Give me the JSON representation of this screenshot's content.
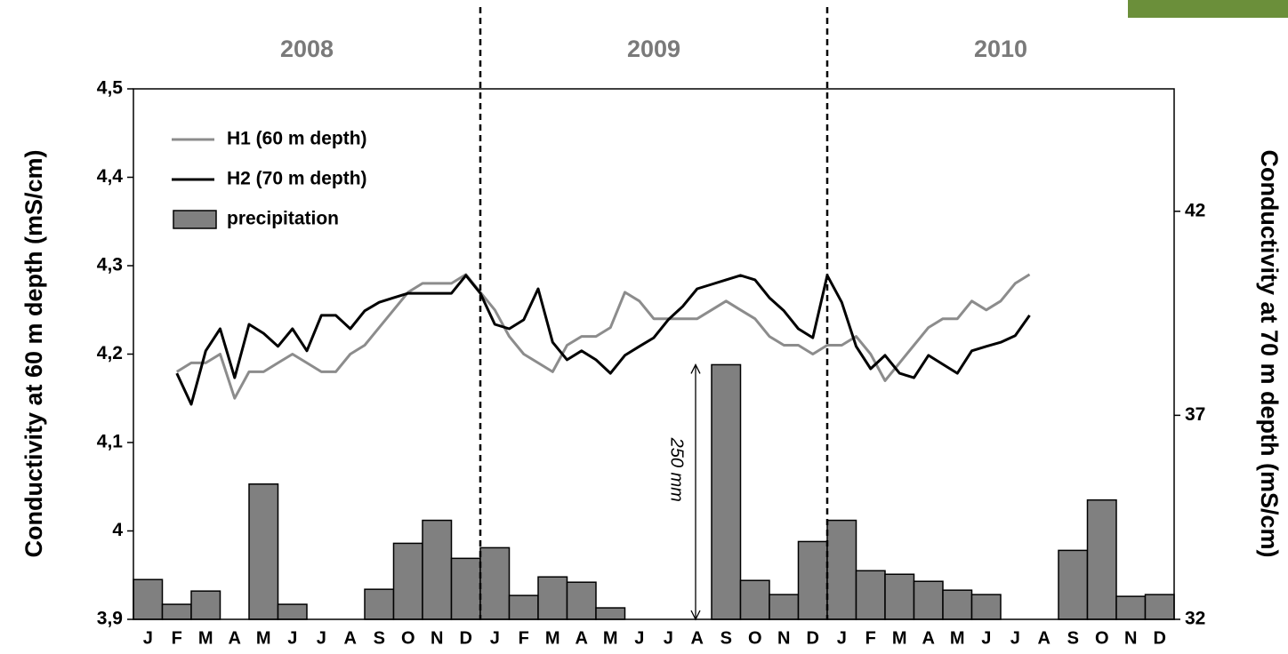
{
  "chart_data": {
    "type": "combo",
    "year_labels": [
      "2008",
      "2009",
      "2010"
    ],
    "categories": [
      "J",
      "F",
      "M",
      "A",
      "M",
      "J",
      "J",
      "A",
      "S",
      "O",
      "N",
      "D",
      "J",
      "F",
      "M",
      "A",
      "M",
      "J",
      "J",
      "A",
      "S",
      "O",
      "N",
      "D",
      "J",
      "F",
      "M",
      "A",
      "M",
      "J",
      "J",
      "A",
      "S",
      "O",
      "N",
      "D"
    ],
    "xlim": [
      0,
      36
    ],
    "x": [
      1.5,
      2,
      2.5,
      3,
      3.5,
      4,
      4.5,
      5,
      5.5,
      6,
      6.5,
      7,
      7.5,
      8,
      8.5,
      9,
      9.5,
      10,
      10.5,
      11,
      11.5,
      12,
      12.5,
      13,
      13.5,
      14,
      14.5,
      15,
      15.5,
      16,
      16.5,
      17,
      17.5,
      18,
      18.5,
      19,
      19.5,
      20,
      20.5,
      21,
      21.5,
      22,
      22.5,
      23,
      23.5,
      24,
      24.5,
      25,
      25.5,
      26,
      26.5,
      27,
      27.5,
      28,
      28.5,
      29,
      29.5,
      30,
      30.5,
      31
    ],
    "ylabel": "Conductivity at 60 m depth (mS/cm)",
    "y2label": "Conductivity at 70 m depth (mS/cm)",
    "ylim": [
      3.9,
      4.5
    ],
    "yticks": [
      {
        "value": 3.9,
        "label": "3,9"
      },
      4,
      {
        "value": 4.1,
        "label": "4,1"
      },
      {
        "value": 4.2,
        "label": "4,2"
      },
      {
        "value": 4.3,
        "label": "4,3"
      },
      {
        "value": 4.4,
        "label": "4,4"
      },
      {
        "value": 4.5,
        "label": "4,5"
      }
    ],
    "y2lim": [
      32,
      45
    ],
    "y2ticks": [
      32,
      37,
      42
    ],
    "legend": "upper left",
    "annotation": "250 mm",
    "series": [
      {
        "name": "H1 (60 m depth)",
        "type": "line",
        "color": "#8c8c8c",
        "values": [
          4.18,
          4.19,
          4.19,
          4.2,
          4.15,
          4.18,
          4.18,
          4.19,
          4.2,
          4.19,
          4.18,
          4.18,
          4.2,
          4.21,
          4.23,
          4.25,
          4.27,
          4.28,
          4.28,
          4.28,
          4.29,
          4.27,
          4.25,
          4.22,
          4.2,
          4.19,
          4.18,
          4.21,
          4.22,
          4.22,
          4.23,
          4.27,
          4.26,
          4.24,
          4.24,
          4.24,
          4.24,
          4.25,
          4.26,
          4.25,
          4.24,
          4.22,
          4.21,
          4.21,
          4.2,
          4.21,
          4.21,
          4.22,
          4.2,
          4.17,
          4.19,
          4.21,
          4.23,
          4.24,
          4.24,
          4.26,
          4.25,
          4.26,
          4.28,
          4.29
        ]
      },
      {
        "name": "H2 (70 m depth)",
        "type": "line",
        "color": "#000000",
        "axis": "y2",
        "values": [
          38.03,
          37.27,
          38.58,
          39.12,
          37.92,
          39.23,
          39.01,
          38.69,
          39.12,
          38.58,
          39.45,
          39.45,
          39.12,
          39.56,
          39.77,
          39.88,
          39.99,
          39.99,
          39.99,
          39.99,
          40.43,
          39.99,
          39.23,
          39.12,
          39.34,
          40.1,
          38.79,
          38.36,
          38.58,
          38.36,
          38.03,
          38.47,
          38.69,
          38.9,
          39.34,
          39.67,
          40.1,
          40.21,
          40.32,
          40.43,
          40.32,
          39.88,
          39.56,
          39.12,
          38.9,
          40.43,
          39.77,
          38.69,
          38.14,
          38.47,
          38.03,
          37.92,
          38.47,
          38.25,
          38.03,
          38.58,
          38.69,
          38.79,
          38.95,
          39.45
        ]
      },
      {
        "name": "precipitation",
        "type": "bar",
        "color": "#808080",
        "values": [
          3.945,
          3.917,
          3.932,
          3.9,
          4.053,
          3.917,
          3.9,
          3.9,
          3.934,
          3.986,
          4.012,
          3.969,
          3.981,
          3.927,
          3.948,
          3.942,
          3.913,
          3.9,
          3.9,
          3.9,
          4.188,
          3.944,
          3.928,
          3.988,
          4.012,
          3.955,
          3.951,
          3.943,
          3.933,
          3.928,
          3.9,
          3.9,
          3.978,
          4.035,
          3.926,
          3.928
        ]
      }
    ]
  }
}
